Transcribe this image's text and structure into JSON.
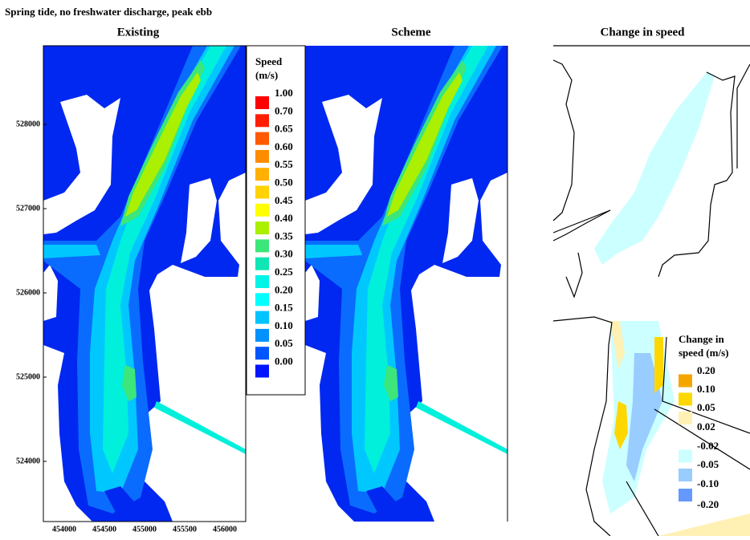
{
  "title": "Spring tide, no freshwater discharge, peak ebb",
  "panels": [
    {
      "title": "Existing"
    },
    {
      "title": "Scheme"
    },
    {
      "title": "Change in speed"
    }
  ],
  "axes": {
    "yticks": [
      528000,
      527000,
      526000,
      525000,
      524000
    ],
    "xticks": [
      454000,
      454500,
      455000,
      455500,
      456000
    ]
  },
  "speed_legend": {
    "title": [
      "Speed",
      "(m/s)"
    ],
    "items": [
      {
        "label": "1.00",
        "color": "#ff0000"
      },
      {
        "label": "0.70",
        "color": "#ff1e00"
      },
      {
        "label": "0.65",
        "color": "#ff5a00"
      },
      {
        "label": "0.60",
        "color": "#ff8c00"
      },
      {
        "label": "0.55",
        "color": "#ffb000"
      },
      {
        "label": "0.50",
        "color": "#ffd200"
      },
      {
        "label": "0.45",
        "color": "#ffff00"
      },
      {
        "label": "0.40",
        "color": "#aaf000"
      },
      {
        "label": "0.35",
        "color": "#3ce67a"
      },
      {
        "label": "0.30",
        "color": "#10e6b4"
      },
      {
        "label": "0.25",
        "color": "#00f5e6"
      },
      {
        "label": "0.20",
        "color": "#00ffff"
      },
      {
        "label": "0.15",
        "color": "#00c3ff"
      },
      {
        "label": "0.10",
        "color": "#0091ff"
      },
      {
        "label": "0.05",
        "color": "#0055ff"
      },
      {
        "label": "0.00",
        "color": "#0014ff"
      }
    ]
  },
  "change_legend": {
    "title": [
      "Change in",
      "speed (m/s)"
    ],
    "labels": [
      "0.20",
      "0.10",
      "0.05",
      "0.02",
      "-0.02",
      "-0.05",
      "-0.10",
      "-0.20"
    ],
    "colors": [
      "#f5a500",
      "#ffd700",
      "#fff0b4",
      "#ccffff",
      "#99ccff",
      "#6699ff"
    ]
  }
}
